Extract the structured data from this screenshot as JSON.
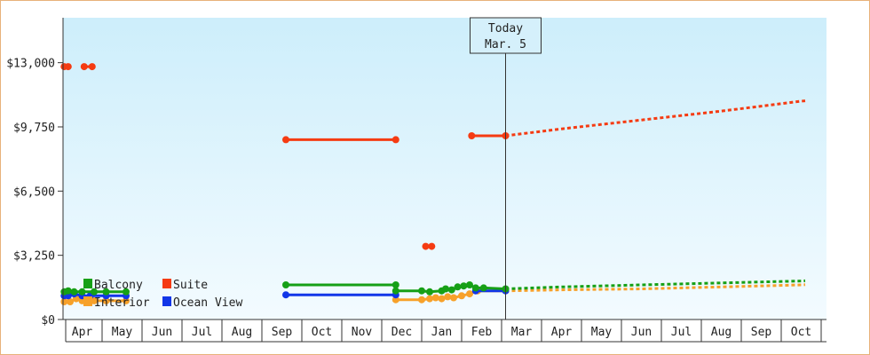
{
  "chart_data": {
    "type": "line",
    "title": "",
    "xlabel": "",
    "ylabel": "",
    "ylim": [
      0,
      15275
    ],
    "y_ticks": [
      {
        "value": 0,
        "label": "$0"
      },
      {
        "value": 3250,
        "label": "$3,250"
      },
      {
        "value": 6500,
        "label": "$6,500"
      },
      {
        "value": 9750,
        "label": "$9,750"
      },
      {
        "value": 13000,
        "label": "$13,000"
      }
    ],
    "xlim": [
      -0.5,
      18.1
    ],
    "x_months": [
      "Apr",
      "May",
      "Jun",
      "Jul",
      "Aug",
      "Sep",
      "Oct",
      "Nov",
      "Dec",
      "Jan",
      "Feb",
      "Mar",
      "Apr",
      "May",
      "Jun",
      "Jul",
      "Aug",
      "Sep",
      "Oct"
    ],
    "today": {
      "x": 10.6,
      "line1": "Today",
      "line2": "Mar. 5"
    },
    "grid": false,
    "legend_position": "bottom-left",
    "series": [
      {
        "name": "Balcony",
        "color": "#16a016",
        "segments": [
          [
            [
              -0.45,
              1400
            ],
            [
              -0.35,
              1450
            ],
            [
              -0.2,
              1400
            ],
            [
              0,
              1400
            ],
            [
              0.3,
              1400
            ],
            [
              0.6,
              1400
            ],
            [
              1.1,
              1400
            ]
          ],
          [
            [
              5.1,
              1750
            ],
            [
              7.85,
              1750
            ]
          ],
          [
            [
              7.85,
              1450
            ],
            [
              8.5,
              1450
            ],
            [
              8.7,
              1400
            ],
            [
              9.0,
              1450
            ],
            [
              9.1,
              1550
            ],
            [
              9.25,
              1500
            ],
            [
              9.4,
              1650
            ],
            [
              9.55,
              1700
            ],
            [
              9.7,
              1750
            ],
            [
              9.85,
              1600
            ],
            [
              10.05,
              1600
            ],
            [
              10.6,
              1550
            ]
          ]
        ],
        "projection": [
          [
            10.6,
            1550
          ],
          [
            12,
            1650
          ],
          [
            14,
            1750
          ],
          [
            16,
            1850
          ],
          [
            18,
            1950
          ],
          [
            18.1,
            1960
          ]
        ]
      },
      {
        "name": "Suite",
        "color": "#f53b12",
        "segments": [
          [
            [
              -0.45,
              12800
            ],
            [
              -0.35,
              12800
            ]
          ],
          [
            [
              0.05,
              12800
            ],
            [
              0.25,
              12800
            ]
          ],
          [
            [
              5.1,
              9100
            ],
            [
              7.85,
              9100
            ]
          ],
          [
            [
              8.6,
              3700
            ],
            [
              8.75,
              3700
            ]
          ],
          [
            [
              9.75,
              9300
            ],
            [
              10.6,
              9300
            ]
          ]
        ],
        "projection": [
          [
            10.6,
            9300
          ],
          [
            12,
            9650
          ],
          [
            14,
            10100
          ],
          [
            16,
            10550
          ],
          [
            18,
            11050
          ],
          [
            18.1,
            11070
          ]
        ]
      },
      {
        "name": "Interior",
        "color": "#f7a12a",
        "segments": [
          [
            [
              -0.45,
              900
            ],
            [
              -0.3,
              900
            ],
            [
              -0.15,
              1050
            ],
            [
              0,
              950
            ],
            [
              0.2,
              1000
            ],
            [
              0.3,
              950
            ],
            [
              0.6,
              950
            ],
            [
              1.1,
              950
            ]
          ],
          [
            [
              7.85,
              1000
            ],
            [
              8.5,
              1000
            ],
            [
              8.7,
              1050
            ],
            [
              8.85,
              1100
            ],
            [
              9.0,
              1050
            ],
            [
              9.15,
              1150
            ],
            [
              9.3,
              1100
            ],
            [
              9.5,
              1200
            ],
            [
              9.7,
              1300
            ],
            [
              9.9,
              1450
            ],
            [
              10.6,
              1450
            ]
          ]
        ],
        "projection": [
          [
            10.6,
            1450
          ],
          [
            12,
            1500
          ],
          [
            14,
            1550
          ],
          [
            16,
            1650
          ],
          [
            18,
            1750
          ],
          [
            18.1,
            1760
          ]
        ]
      },
      {
        "name": "Ocean View",
        "color": "#1236e8",
        "segments": [
          [
            [
              -0.45,
              1200
            ],
            [
              -0.35,
              1200
            ],
            [
              -0.2,
              1300
            ],
            [
              0,
              1200
            ],
            [
              0.2,
              1200
            ],
            [
              0.6,
              1200
            ],
            [
              1.1,
              1200
            ]
          ],
          [
            [
              5.1,
              1250
            ],
            [
              7.85,
              1250
            ]
          ],
          [
            [
              9.85,
              1450
            ],
            [
              10.6,
              1450
            ]
          ]
        ],
        "projection": null
      }
    ]
  }
}
